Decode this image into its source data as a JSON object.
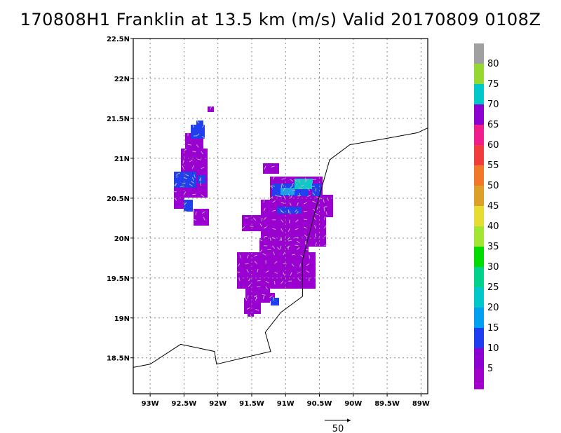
{
  "title": "170808H1 Franklin at 13.5 km (m/s) Valid 20170809 0108Z",
  "axes": {
    "lon_ticks": [
      "93W",
      "92.5W",
      "92W",
      "91.5W",
      "91W",
      "90.5W",
      "90W",
      "89.5W",
      "89W"
    ],
    "lat_ticks": [
      "22.5N",
      "22N",
      "21.5N",
      "21N",
      "20.5N",
      "20N",
      "19.5N",
      "19N",
      "18.5N"
    ],
    "lon_range": [
      -93.25,
      -88.9
    ],
    "lat_range": [
      18.05,
      22.5
    ]
  },
  "colorbar": {
    "labels": [
      "80",
      "75",
      "70",
      "65",
      "60",
      "55",
      "50",
      "45",
      "40",
      "35",
      "30",
      "25",
      "20",
      "15",
      "10",
      "5"
    ],
    "colors": [
      "#a0a0a0",
      "#96d732",
      "#00c8c8",
      "#8c00d2",
      "#f01e8c",
      "#f03c3c",
      "#f07828",
      "#dca028",
      "#e6dc32",
      "#a0e632",
      "#00dc00",
      "#00d28c",
      "#00c8c8",
      "#00a0f0",
      "#1e3cf0",
      "#8c00d2",
      "#a000c8"
    ]
  },
  "reference_vector": {
    "label": "50"
  },
  "coastline": [
    [
      -93.25,
      18.38
    ],
    [
      -93.0,
      18.42
    ],
    [
      -92.55,
      18.67
    ],
    [
      -92.05,
      18.58
    ],
    [
      -92.02,
      18.42
    ],
    [
      -91.22,
      18.58
    ],
    [
      -91.3,
      18.82
    ],
    [
      -91.07,
      19.07
    ],
    [
      -90.75,
      19.27
    ],
    [
      -90.75,
      19.72
    ],
    [
      -90.55,
      20.38
    ],
    [
      -90.35,
      20.98
    ],
    [
      -90.05,
      21.17
    ],
    [
      -89.5,
      21.25
    ],
    [
      -89.05,
      21.32
    ],
    [
      -88.9,
      21.38
    ]
  ],
  "palette": {
    "purple": "#9a00d0",
    "blue": "#2040f0",
    "light_blue": "#20a0e8",
    "cyan": "#10c8c8",
    "arrow": "#b4b4b4"
  }
}
